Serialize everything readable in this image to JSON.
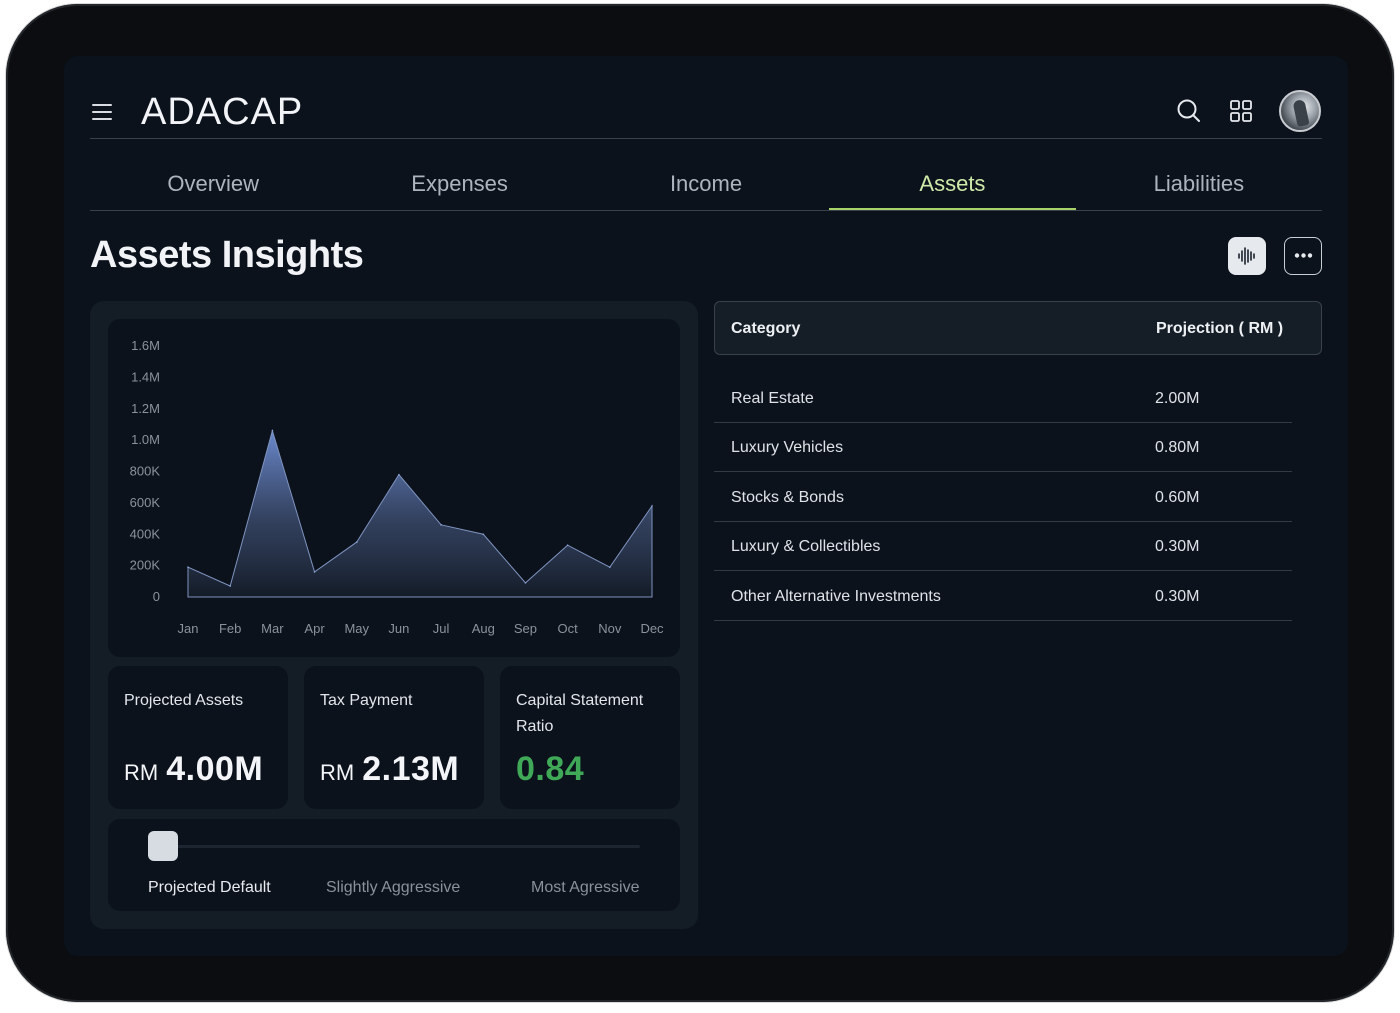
{
  "app": {
    "logo_text": "ADACAP"
  },
  "header": {
    "menu_icon": "hamburger-menu-icon",
    "search_icon": "search-icon",
    "apps_icon": "grid-apps-icon",
    "avatar_icon": "user-avatar"
  },
  "tabs": [
    {
      "label": "Overview",
      "active": false
    },
    {
      "label": "Expenses",
      "active": false
    },
    {
      "label": "Income",
      "active": false
    },
    {
      "label": "Assets",
      "active": true
    },
    {
      "label": "Liabilities",
      "active": false
    }
  ],
  "page": {
    "title": "Assets Insights",
    "chart_button_icon": "audio-bars-icon",
    "more_button_icon": "more-dots-icon"
  },
  "chart_data": {
    "type": "area",
    "categories": [
      "Jan",
      "Feb",
      "Mar",
      "Apr",
      "May",
      "Jun",
      "Jul",
      "Aug",
      "Sep",
      "Oct",
      "Nov",
      "Dec"
    ],
    "values": [
      190000,
      70000,
      1060000,
      160000,
      350000,
      780000,
      460000,
      400000,
      90000,
      330000,
      190000,
      580000
    ],
    "y_ticks": [
      "0",
      "200K",
      "400K",
      "600K",
      "800K",
      "1.0M",
      "1.2M",
      "1.4M",
      "1.6M"
    ],
    "ylim": [
      0,
      1600000
    ],
    "grid": false
  },
  "stats": [
    {
      "label": "Projected Assets",
      "currency": "RM",
      "value": "4.00M"
    },
    {
      "label": "Tax Payment",
      "currency": "RM",
      "value": "2.13M"
    },
    {
      "label": "Capital Statement Ratio",
      "currency": "",
      "value": "0.84"
    }
  ],
  "slider": {
    "options": [
      "Projected Default",
      "Slightly Aggressive",
      "Most Agressive"
    ],
    "selected": "Projected Default",
    "position": 0
  },
  "table": {
    "headers": [
      "Category",
      "Projection ( RM )"
    ],
    "rows": [
      [
        "Real Estate",
        "2.00M"
      ],
      [
        "Luxury Vehicles",
        "0.80M"
      ],
      [
        "Stocks & Bonds",
        "0.60M"
      ],
      [
        "Luxury & Collectibles",
        "0.30M"
      ],
      [
        "Other Alternative Investments",
        "0.30M"
      ]
    ]
  },
  "colors": {
    "accent": "#a7d36a",
    "positive": "#3fa957",
    "background": "#0b121c"
  }
}
